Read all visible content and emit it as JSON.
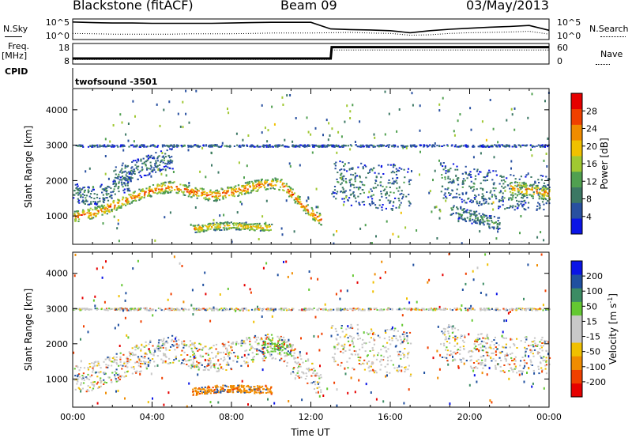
{
  "header": {
    "station": "Blackstone (fitACF)",
    "beam": "Beam 09",
    "date": "03/May/2013"
  },
  "labels": {
    "nsky": "N.Sky",
    "nsearch": "N.Search",
    "freq": "Freq.",
    "freq_unit": "[MHz]",
    "nave": "Nave",
    "cpid": "CPID",
    "cpid_value": "twofsound  -3501",
    "ylabel": "Slant Range [km]",
    "xlabel": "Time UT",
    "power_label": "Power [dB]",
    "velocity_label": "Velocity [m s",
    "velocity_sup": "-1",
    "velocity_close": "]"
  },
  "chart_data": [
    {
      "type": "line",
      "name": "noise",
      "ytick_labels_left": [
        "10^5",
        "10^0"
      ],
      "ytick_labels_right": [
        "10^5",
        "10^0"
      ],
      "series": [
        {
          "name": "N.Sky",
          "style": "solid",
          "x": [
            0,
            1,
            2,
            3,
            4,
            5,
            6,
            7,
            8,
            9,
            10,
            11,
            12,
            13,
            14,
            15,
            16,
            17,
            18,
            19,
            20,
            21,
            22,
            23,
            24
          ],
          "values": [
            4.6,
            4.4,
            4.3,
            4.3,
            4.2,
            4.2,
            4.2,
            4.2,
            4.3,
            4.4,
            4.5,
            4.5,
            4.5,
            2.6,
            2.4,
            2.3,
            2.1,
            1.5,
            2.1,
            2.5,
            2.8,
            3.1,
            3.3,
            3.6,
            2.2
          ]
        },
        {
          "name": "N.Search",
          "style": "dotted",
          "x": [
            0,
            1,
            2,
            3,
            4,
            5,
            6,
            7,
            8,
            9,
            10,
            11,
            12,
            13,
            14,
            15,
            16,
            17,
            18,
            19,
            20,
            21,
            22,
            23,
            24
          ],
          "values": [
            1.3,
            1.2,
            1.1,
            1.1,
            1.1,
            1.1,
            1.2,
            1.2,
            1.2,
            1.3,
            1.4,
            1.4,
            1.4,
            1.5,
            1.6,
            1.4,
            1.3,
            0.8,
            0.9,
            1.3,
            1.5,
            1.6,
            1.7,
            1.9,
            1.1
          ]
        }
      ]
    },
    {
      "type": "line",
      "name": "frequency-nave",
      "ytick_labels_left": [
        "18",
        "8"
      ],
      "ytick_labels_right": [
        "60",
        "0"
      ],
      "series": [
        {
          "name": "Freq.",
          "style": "solid",
          "x": [
            0,
            0.05,
            13,
            13.05,
            24
          ],
          "values": [
            10.5,
            10.5,
            10.5,
            16.5,
            16.5
          ]
        },
        {
          "name": "Nave",
          "style": "dotted",
          "x": [
            0,
            13,
            13.05,
            24
          ],
          "values": [
            12,
            12,
            42,
            42
          ]
        }
      ]
    },
    {
      "type": "heatmap",
      "name": "power",
      "colorbar_label": "Power [dB]",
      "colorbar_ticks": [
        "28",
        "24",
        "20",
        "16",
        "12",
        "8",
        "4"
      ],
      "colorbar_range": [
        0,
        32
      ],
      "ytick_labels": [
        "4000",
        "3000",
        "2000",
        "1000"
      ],
      "ylim": [
        200,
        4600
      ],
      "bands": [
        {
          "t": [
            0,
            1,
            2,
            3,
            4,
            5,
            6,
            7,
            8,
            9,
            10,
            10.5,
            11,
            11.5,
            12,
            12.5
          ],
          "r": [
            1000,
            1100,
            1300,
            1550,
            1750,
            1850,
            1700,
            1600,
            1700,
            1850,
            1950,
            1900,
            1650,
            1350,
            1100,
            900
          ],
          "w": 160,
          "p": 26
        },
        {
          "t": [
            6,
            7,
            8,
            9,
            10
          ],
          "r": [
            650,
            720,
            750,
            720,
            700
          ],
          "w": 110,
          "p": 22
        },
        {
          "t": [
            0,
            0.5,
            1,
            1.5,
            2,
            2.5,
            3
          ],
          "r": [
            1700,
            1600,
            1550,
            1650,
            1800,
            1900,
            2050
          ],
          "w": 280,
          "p": 10
        },
        {
          "t": [
            2,
            2.5,
            3,
            3.5,
            4,
            4.5,
            5
          ],
          "r": [
            2200,
            2250,
            2300,
            2400,
            2500,
            2600,
            2650
          ],
          "w": 300,
          "p": 9
        },
        {
          "t": [
            13,
            13.5,
            14,
            14.5,
            15,
            15.5,
            16,
            16.5,
            17
          ],
          "r": [
            2000,
            1950,
            1950,
            1900,
            1850,
            1800,
            1850,
            1800,
            1750
          ],
          "w": 650,
          "p": 9
        },
        {
          "t": [
            18.5,
            19,
            19.5,
            20,
            20.5,
            21,
            21.5,
            22,
            22.5,
            23,
            23.5,
            24
          ],
          "r": [
            2000,
            2050,
            1950,
            1850,
            1800,
            1800,
            1750,
            1700,
            1700,
            1700,
            1700,
            1650
          ],
          "w": 520,
          "p": 10
        },
        {
          "t": [
            22,
            22.5,
            23,
            23.5,
            24
          ],
          "r": [
            1800,
            1800,
            1750,
            1700,
            1650
          ],
          "w": 200,
          "p": 24
        },
        {
          "t": [
            19,
            19.5,
            20,
            20.5,
            21,
            21.5
          ],
          "r": [
            1200,
            1100,
            1000,
            950,
            850,
            800
          ],
          "w": 180,
          "p": 12
        },
        {
          "t": [
            0,
            2,
            4,
            6,
            8,
            10,
            12,
            14,
            16,
            18,
            20,
            22,
            24
          ],
          "r": [
            3000,
            3000,
            3000,
            3000,
            3000,
            3000,
            3000,
            3000,
            3000,
            3000,
            3000,
            3000,
            3000
          ],
          "w": 30,
          "p": 8
        }
      ]
    },
    {
      "type": "heatmap",
      "name": "velocity",
      "colorbar_label": "Velocity [m s-1]",
      "colorbar_ticks": [
        "200",
        "100",
        "50",
        "15",
        "-15",
        "-50",
        "-100",
        "-200"
      ],
      "colorbar_range": [
        -250,
        250
      ],
      "ytick_labels": [
        "4000",
        "3000",
        "2000",
        "1000"
      ],
      "ylim": [
        200,
        4600
      ],
      "bands": [
        {
          "t": [
            0,
            1,
            2,
            3,
            4,
            5,
            6,
            7,
            8,
            9,
            10,
            10.5,
            11,
            11.5,
            12,
            12.5
          ],
          "r": [
            1000,
            1100,
            1300,
            1550,
            1750,
            1850,
            1700,
            1600,
            1700,
            1850,
            1950,
            1900,
            1650,
            1350,
            1100,
            900
          ],
          "w": 400,
          "v": 0
        },
        {
          "t": [
            6,
            7,
            8,
            9,
            10
          ],
          "r": [
            650,
            720,
            750,
            720,
            700
          ],
          "w": 110,
          "v": -70
        },
        {
          "t": [
            9.5,
            10,
            10.5,
            11
          ],
          "r": [
            1900,
            2000,
            1950,
            1850
          ],
          "w": 200,
          "v": 30
        },
        {
          "t": [
            13,
            13.5,
            14,
            14.5,
            15,
            15.5,
            16,
            16.5,
            17
          ],
          "r": [
            2000,
            1950,
            1950,
            1900,
            1850,
            1800,
            1850,
            1800,
            1750
          ],
          "w": 650,
          "v": 0
        },
        {
          "t": [
            18.5,
            19,
            19.5,
            20,
            20.5,
            21,
            21.5,
            22,
            22.5,
            23,
            23.5,
            24
          ],
          "r": [
            2000,
            2050,
            1950,
            1850,
            1800,
            1800,
            1750,
            1700,
            1700,
            1700,
            1700,
            1650
          ],
          "w": 520,
          "v": 0
        },
        {
          "t": [
            0,
            2,
            4,
            6,
            8,
            10,
            12,
            14,
            16,
            18,
            20,
            22,
            24
          ],
          "r": [
            3000,
            3000,
            3000,
            3000,
            3000,
            3000,
            3000,
            3000,
            3000,
            3000,
            3000,
            3000,
            3000
          ],
          "w": 30,
          "v": 0
        }
      ]
    }
  ],
  "xaxis": {
    "label": "Time UT",
    "tick_labels": [
      "00:00",
      "04:00",
      "08:00",
      "12:00",
      "16:00",
      "20:00",
      "00:00"
    ],
    "range_hours": [
      0,
      24
    ]
  },
  "colors": {
    "power_scale": [
      "#0a14e6",
      "#2850a0",
      "#3c7864",
      "#50a050",
      "#a0c832",
      "#f0c000",
      "#f08c00",
      "#f04000",
      "#e60000"
    ],
    "velocity_scale": [
      "#e60000",
      "#f04000",
      "#f08c00",
      "#f0c000",
      "#c8c8c8",
      "#c8c8c8",
      "#64c832",
      "#3c8c64",
      "#2050a0",
      "#0a14e6"
    ]
  }
}
